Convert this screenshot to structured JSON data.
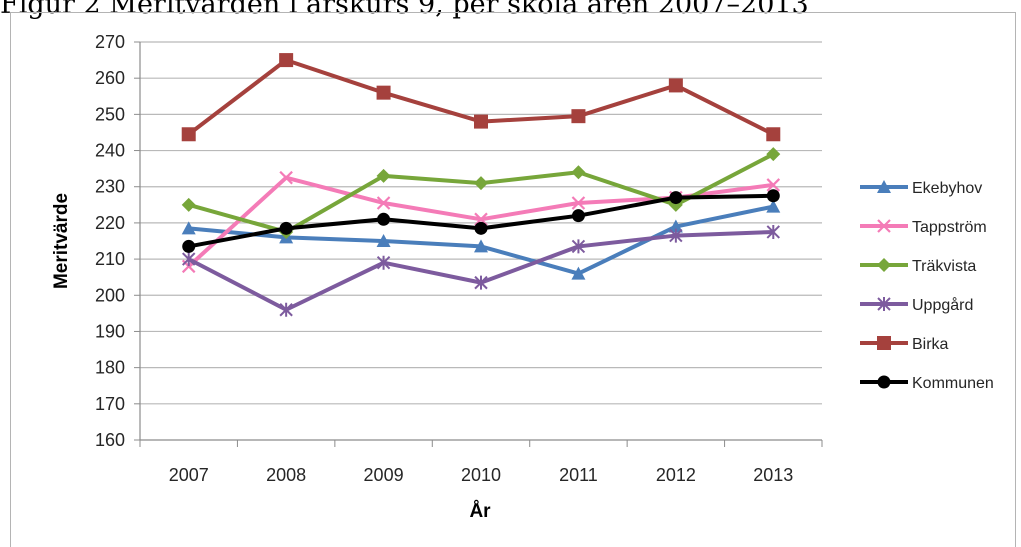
{
  "page_title": "Figur 2 Meritvärden i årskurs 9, per skola åren 2007–2013",
  "chart_data": {
    "type": "line",
    "title": "",
    "xlabel": "År",
    "ylabel": "Meritvärde",
    "ylim": [
      160,
      270
    ],
    "ytick_step": 10,
    "grid": true,
    "legend_position": "right",
    "categories": [
      "2007",
      "2008",
      "2009",
      "2010",
      "2011",
      "2012",
      "2013"
    ],
    "series": [
      {
        "name": "Ekebyhov",
        "color": "#4a7ebb",
        "marker": "triangle",
        "values": [
          218.5,
          216,
          215,
          213.5,
          206,
          219,
          224.5
        ]
      },
      {
        "name": "Tappström",
        "color": "#f47bb7",
        "marker": "x",
        "values": [
          208,
          232.5,
          225.5,
          221,
          225.5,
          227,
          230.5
        ]
      },
      {
        "name": "Träkvista",
        "color": "#77a63a",
        "marker": "diamond",
        "values": [
          225,
          217.5,
          233,
          231,
          234,
          225,
          239
        ]
      },
      {
        "name": "Uppgård",
        "color": "#7d5b9e",
        "marker": "star",
        "values": [
          210,
          196,
          209,
          203.5,
          213.5,
          216.5,
          217.5
        ]
      },
      {
        "name": "Birka",
        "color": "#a5413d",
        "marker": "square",
        "values": [
          244.5,
          265,
          256,
          248,
          249.5,
          258,
          244.5
        ]
      },
      {
        "name": "Kommunen",
        "color": "#000000",
        "marker": "circle",
        "values": [
          213.5,
          218.5,
          221,
          218.5,
          222,
          227,
          227.5
        ]
      }
    ]
  }
}
